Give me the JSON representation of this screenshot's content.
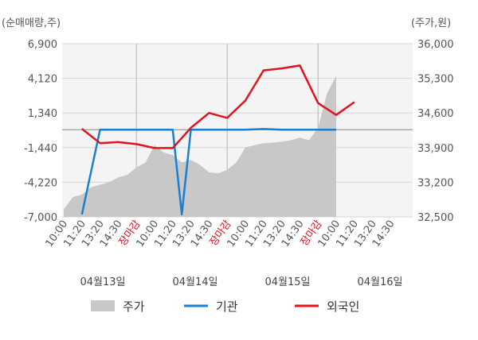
{
  "chart_data": {
    "type": "line",
    "left_axis_unit": "(순매매량,주)",
    "right_axis_unit": "(주가,원)",
    "left_ticks": [
      "6,900",
      "4,120",
      "1,340",
      "-1,440",
      "-4,220",
      "-7,000"
    ],
    "right_ticks": [
      "36,000",
      "35,300",
      "34,600",
      "33,900",
      "33,200",
      "32,500"
    ],
    "left_range": [
      -7000,
      6900
    ],
    "right_range": [
      32500,
      36000
    ],
    "x_ticks": [
      {
        "label": "10:00",
        "red": false
      },
      {
        "label": "11:20",
        "red": false
      },
      {
        "label": "13:20",
        "red": false
      },
      {
        "label": "14:30",
        "red": false
      },
      {
        "label": "장마감",
        "red": true
      },
      {
        "label": "10:00",
        "red": false
      },
      {
        "label": "11:20",
        "red": false
      },
      {
        "label": "13:20",
        "red": false
      },
      {
        "label": "14:30",
        "red": false
      },
      {
        "label": "장마감",
        "red": true
      },
      {
        "label": "10:00",
        "red": false
      },
      {
        "label": "11:20",
        "red": false
      },
      {
        "label": "13:20",
        "red": false
      },
      {
        "label": "14:30",
        "red": false
      },
      {
        "label": "장마감",
        "red": true
      },
      {
        "label": "10:00",
        "red": false
      },
      {
        "label": "11:20",
        "red": false
      },
      {
        "label": "13:20",
        "red": false
      },
      {
        "label": "14:30",
        "red": false
      }
    ],
    "dates": [
      "04월13일",
      "04월14일",
      "04월15일",
      "04월16일"
    ],
    "legend": [
      {
        "name": "주가",
        "color": "#c8c8c8",
        "kind": "area"
      },
      {
        "name": "기관",
        "color": "#1a7fd1",
        "kind": "line"
      },
      {
        "name": "외국인",
        "color": "#e0141e",
        "kind": "line"
      }
    ],
    "series": [
      {
        "name": "기관",
        "axis": "left",
        "color": "#1a7fd1",
        "x": [
          1,
          2,
          5,
          6,
          6.5,
          7,
          8,
          9,
          10,
          11,
          12,
          13,
          14,
          15
        ],
        "y": [
          -6800,
          0,
          0,
          0,
          -6800,
          0,
          0,
          0,
          0,
          50,
          0,
          0,
          0,
          0
        ]
      },
      {
        "name": "외국인",
        "axis": "right",
        "color": "#e0141e",
        "x": [
          1,
          2,
          3,
          4,
          5,
          6,
          7,
          8,
          9,
          10,
          11,
          12,
          13,
          14,
          15,
          16
        ],
        "y": [
          34280,
          33990,
          34010,
          33970,
          33890,
          33890,
          34300,
          34600,
          34500,
          34850,
          35460,
          35500,
          35560,
          34800,
          34560,
          34820
        ]
      },
      {
        "name": "주가",
        "axis": "right",
        "color": "#c8c8c8",
        "x": [
          0,
          0.5,
          1,
          1.5,
          2,
          2.5,
          3,
          3.5,
          4,
          4.5,
          5,
          5.5,
          6,
          6.5,
          7,
          7.5,
          8,
          8.5,
          9,
          9.5,
          10,
          10.5,
          11,
          11.5,
          12,
          12.5,
          13,
          13.5,
          14,
          14.5,
          15
        ],
        "y": [
          32650,
          32900,
          32950,
          33100,
          33150,
          33200,
          33300,
          33350,
          33500,
          33600,
          33950,
          33800,
          33750,
          33600,
          33650,
          33550,
          33400,
          33380,
          33450,
          33600,
          33900,
          33950,
          33990,
          34000,
          34020,
          34050,
          34100,
          34050,
          34300,
          35000,
          35350
        ]
      }
    ]
  }
}
